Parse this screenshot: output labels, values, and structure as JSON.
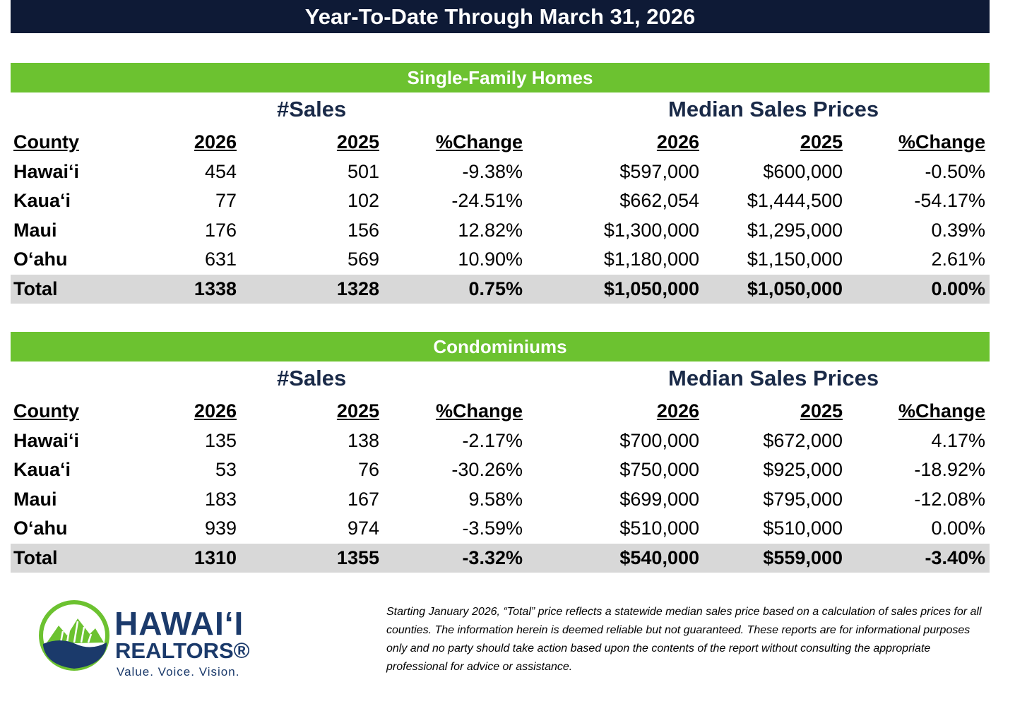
{
  "title": "Year-To-Date Through March 31, 2026",
  "sections": [
    {
      "name": "Single-Family Homes",
      "sales_label": "#Sales",
      "price_label": "Median Sales Prices",
      "headers": [
        "County",
        "2026",
        "2025",
        "%Change",
        "2026",
        "2025",
        "%Change"
      ],
      "rows": [
        [
          "Hawaiʻi",
          "454",
          "501",
          "-9.38%",
          "$597,000",
          "$600,000",
          "-0.50%"
        ],
        [
          "Kauaʻi",
          "77",
          "102",
          "-24.51%",
          "$662,054",
          "$1,444,500",
          "-54.17%"
        ],
        [
          "Maui",
          "176",
          "156",
          "12.82%",
          "$1,300,000",
          "$1,295,000",
          "0.39%"
        ],
        [
          "Oʻahu",
          "631",
          "569",
          "10.90%",
          "$1,180,000",
          "$1,150,000",
          "2.61%"
        ]
      ],
      "total": [
        "Total",
        "1338",
        "1328",
        "0.75%",
        "$1,050,000",
        "$1,050,000",
        "0.00%"
      ]
    },
    {
      "name": "Condominiums",
      "sales_label": "#Sales",
      "price_label": "Median Sales Prices",
      "headers": [
        "County",
        "2026",
        "2025",
        "%Change",
        "2026",
        "2025",
        "%Change"
      ],
      "rows": [
        [
          "Hawaiʻi",
          "135",
          "138",
          "-2.17%",
          "$700,000",
          "$672,000",
          "4.17%"
        ],
        [
          "Kauaʻi",
          "53",
          "76",
          "-30.26%",
          "$750,000",
          "$925,000",
          "-18.92%"
        ],
        [
          "Maui",
          "183",
          "167",
          "9.58%",
          "$699,000",
          "$795,000",
          "-12.08%"
        ],
        [
          "Oʻahu",
          "939",
          "974",
          "-3.59%",
          "$510,000",
          "$510,000",
          "0.00%"
        ]
      ],
      "total": [
        "Total",
        "1310",
        "1355",
        "-3.32%",
        "$540,000",
        "$559,000",
        "-3.40%"
      ]
    }
  ],
  "logo": {
    "line1": "HAWAIʻI",
    "line2": "REALTORS®",
    "tagline": "Value. Voice. Vision."
  },
  "disclaimer": "Starting January 2026, “Total” price reflects a statewide median sales price based on a calculation of sales prices for all counties. The information herein is deemed reliable but not guaranteed. These reports are for informational purposes only and no party should take action based upon the contents of the report without consulting the appropriate professional for advice or assistance.",
  "colors": {
    "title_bg": "#0e1a36",
    "section_bg": "#6cc230",
    "total_bg": "#d8d8d8",
    "label_text": "#1a2a48",
    "logo_blue": "#1b3a6b",
    "logo_green": "#6cc230"
  }
}
